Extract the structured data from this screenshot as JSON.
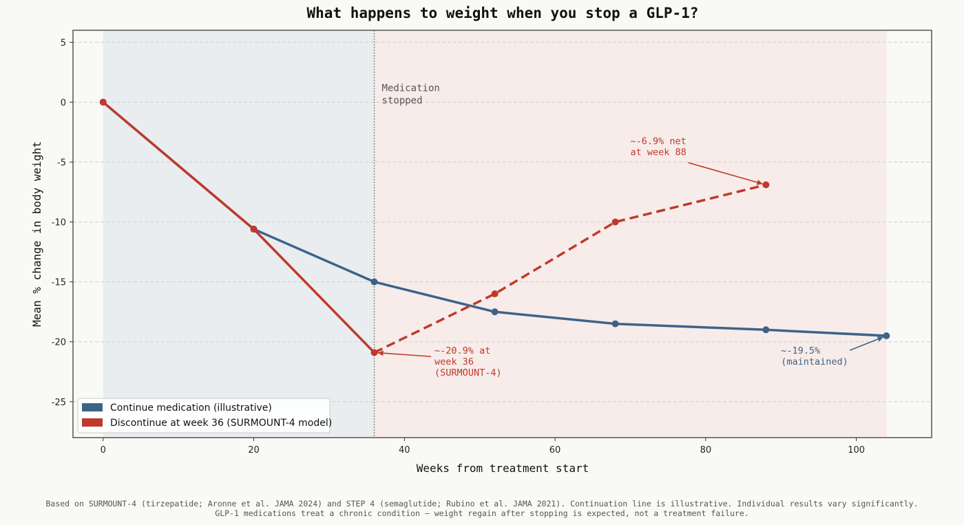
{
  "chart_data": {
    "type": "line",
    "title": "What happens to weight when you stop a GLP-1?",
    "xlabel": "Weeks from treatment start",
    "ylabel": "Mean % change in body weight",
    "xlim": [
      -4,
      110
    ],
    "ylim": [
      -28,
      6
    ],
    "xticks": [
      0,
      20,
      40,
      60,
      80,
      100
    ],
    "yticks": [
      5,
      0,
      -5,
      -10,
      -15,
      -20,
      -25
    ],
    "grid": "y-dashed",
    "shaded_regions": [
      {
        "name": "on-treatment",
        "x_from": 0,
        "x_to": 36,
        "color": "#e9edf0"
      },
      {
        "name": "post-discontinuation",
        "x_from": 36,
        "x_to": 104,
        "color": "#f7ece9"
      }
    ],
    "vline": {
      "x": 36,
      "label": "Medication\nstopped"
    },
    "series": [
      {
        "name": "Continue medication (illustrative)",
        "color": "#3d6389",
        "style": "solid",
        "x": [
          0,
          20,
          36,
          52,
          68,
          88,
          104
        ],
        "y": [
          0,
          -10.6,
          -15,
          -17.5,
          -18.5,
          -19,
          -19.5
        ]
      },
      {
        "name": "Discontinue at week 36 (SURMOUNT-4 model)",
        "color": "#c0392b",
        "style": "solid-then-dashed",
        "dash_from_x": 36,
        "x": [
          0,
          20,
          36,
          52,
          68,
          88
        ],
        "y": [
          0,
          -10.6,
          -20.9,
          -16,
          -10,
          -6.9
        ]
      }
    ],
    "annotations": [
      {
        "text": "~-20.9% at\nweek 36\n(SURMOUNT-4)",
        "point": [
          36,
          -20.9
        ],
        "text_at": [
          44,
          -21
        ],
        "color": "#c0392b"
      },
      {
        "text": "~-6.9% net\nat week 88",
        "point": [
          88,
          -6.9
        ],
        "text_at": [
          70,
          -3.5
        ],
        "color": "#c0392b"
      },
      {
        "text": "~-19.5%\n(maintained)",
        "point": [
          104,
          -19.5
        ],
        "text_at": [
          90,
          -21
        ],
        "color": "#3d6389"
      }
    ],
    "legend": {
      "placement": "lower-left",
      "entries": [
        "Continue medication (illustrative)",
        "Discontinue at week 36 (SURMOUNT-4 model)"
      ]
    },
    "footnote": [
      "Based on SURMOUNT-4 (tirzepatide; Aronne et al. JAMA 2024) and STEP 4 (semaglutide; Rubino et al. JAMA 2021). Continuation line is illustrative. Individual results vary significantly.",
      "GLP-1 medications treat a chronic condition — weight regain after stopping is expected, not a treatment failure."
    ]
  }
}
